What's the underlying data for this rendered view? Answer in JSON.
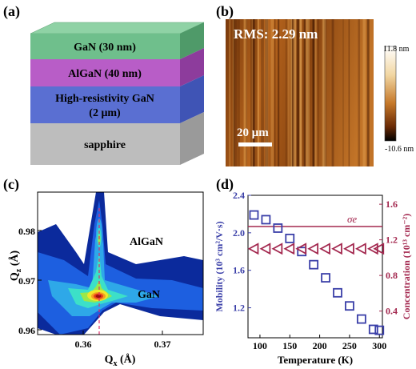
{
  "panels": {
    "a": "(a)",
    "b": "(b)",
    "c": "(c)",
    "d": "(d)"
  },
  "stack": {
    "layers": [
      {
        "line1": "GaN (30 nm)",
        "line2": "",
        "color": "#6fbf8c"
      },
      {
        "line1": "AlGaN (40 nm)",
        "line2": "",
        "color": "#b85dc7"
      },
      {
        "line1": "High-resistivity GaN",
        "line2": "(2 μm)",
        "color": "#5a6fd2"
      },
      {
        "line1": "sapphire",
        "line2": "",
        "color": "#bdbdbd"
      }
    ]
  },
  "afm": {
    "rms": "RMS: 2.29 nm",
    "scale_bar": "20 μm",
    "colorbar_max": "11.8 nm",
    "colorbar_min": "-10.6 nm"
  },
  "rsm": {
    "ylabel_main": "Q",
    "ylabel_sub": "z",
    "ylabel_unit": " (Å)",
    "xlabel_main": "Q",
    "xlabel_sub": "x",
    "xlabel_unit": " (Å)",
    "xticks": [
      "0.36",
      "0.37"
    ],
    "yticks": [
      "0.98",
      "0.97",
      "0.96"
    ],
    "label_algan": "AlGaN",
    "label_gan": "GaN"
  },
  "chart_data": {
    "type": "scatter",
    "xlabel": "Temperature (K)",
    "ylabel_left": "Mobility (10³ cm²/V·s)",
    "ylabel_right": "Concentration (10¹³ cm⁻²)",
    "x_ticks": [
      "100",
      "150",
      "200",
      "250",
      "300"
    ],
    "y_left_ticks": [
      "1.2",
      "1.6",
      "2.0",
      "2.4"
    ],
    "y_right_ticks": [
      "0.4",
      "0.8",
      "1.2",
      "1.6"
    ],
    "xlim": [
      80,
      305
    ],
    "ylim_left": [
      0.88,
      2.4
    ],
    "ylim_right": [
      0.1,
      1.7
    ],
    "sigma_label": "σe",
    "sigma_value": 1.35,
    "left_color": "#3a3fa8",
    "right_color": "#a3284f",
    "series": [
      {
        "name": "",
        "axis": "left",
        "x": [
          90,
          110,
          130,
          150,
          170,
          190,
          210,
          230,
          250,
          270,
          290,
          300
        ],
        "y": [
          2.19,
          2.14,
          2.05,
          1.94,
          1.8,
          1.66,
          1.52,
          1.36,
          1.22,
          1.08,
          0.97,
          0.96
        ]
      },
      {
        "name": "",
        "axis": "right",
        "x": [
          90,
          110,
          130,
          150,
          170,
          190,
          210,
          230,
          250,
          270,
          290,
          300
        ],
        "y": [
          1.1,
          1.1,
          1.1,
          1.1,
          1.1,
          1.1,
          1.1,
          1.1,
          1.1,
          1.1,
          1.1,
          1.1
        ]
      }
    ]
  }
}
